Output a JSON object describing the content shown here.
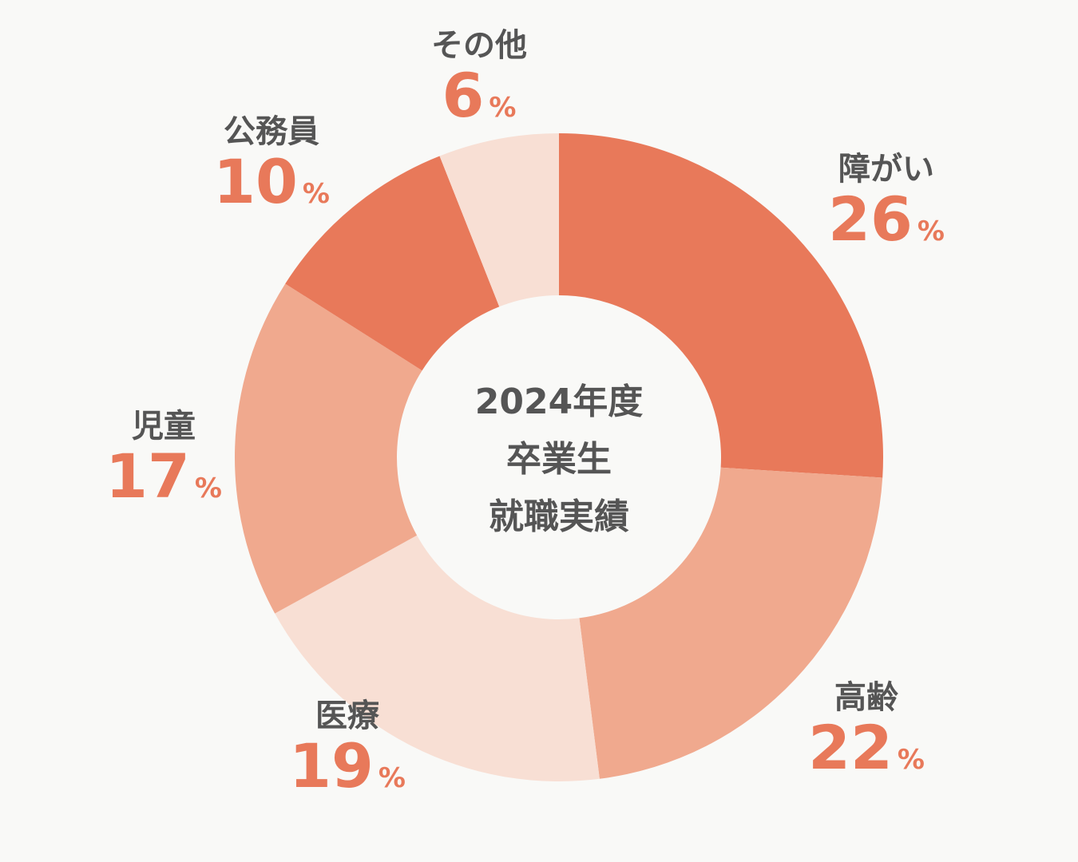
{
  "chart_data": {
    "type": "pie",
    "title_lines": [
      "2024年度",
      "卒業生",
      "就職実績"
    ],
    "unit": "%",
    "slices": [
      {
        "label": "障がい",
        "value": 26,
        "color": "#e8795a"
      },
      {
        "label": "高齢",
        "value": 22,
        "color": "#f0a98e"
      },
      {
        "label": "医療",
        "value": 19,
        "color": "#f8dfd4"
      },
      {
        "label": "児童",
        "value": 17,
        "color": "#f0a98e"
      },
      {
        "label": "公務員",
        "value": 10,
        "color": "#e8795a"
      },
      {
        "label": "その他",
        "value": 6,
        "color": "#f8dfd4"
      }
    ]
  }
}
